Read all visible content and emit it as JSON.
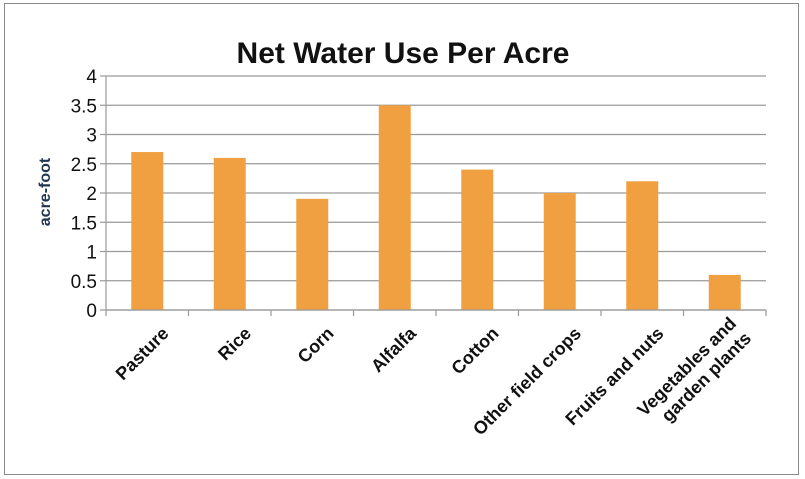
{
  "chart_data": {
    "type": "bar",
    "title": "Net Water Use Per Acre",
    "ylabel": "acre-foot",
    "xlabel": "",
    "ylim": [
      0,
      4
    ],
    "yticks": [
      "0",
      "0.5",
      "1",
      "1.5",
      "2",
      "2.5",
      "3",
      "3.5",
      "4"
    ],
    "grid": true,
    "legend": "none",
    "bar_color": "#f0a040",
    "categories": [
      [
        "Pasture"
      ],
      [
        "Rice"
      ],
      [
        "Corn"
      ],
      [
        "Alfalfa"
      ],
      [
        "Cotton"
      ],
      [
        "Other field crops"
      ],
      [
        "Fruits and nuts"
      ],
      [
        "Vegetables and",
        "garden plants"
      ]
    ],
    "values": [
      2.7,
      2.6,
      1.9,
      3.5,
      2.4,
      2.0,
      2.2,
      0.6
    ]
  }
}
